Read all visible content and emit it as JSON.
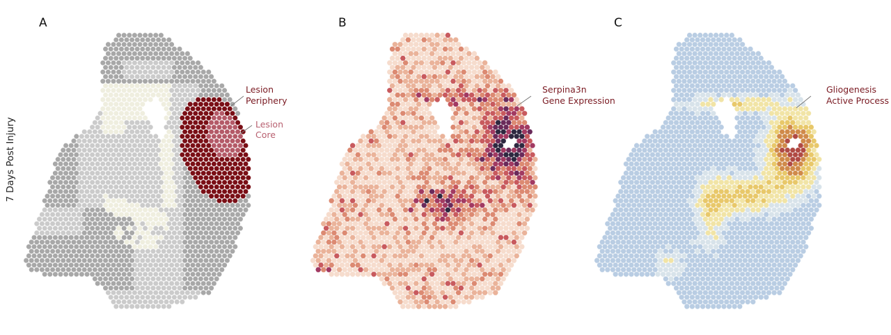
{
  "side_label": "7 Days Post Injury",
  "panels": [
    {
      "label": "A",
      "annotations": [
        {
          "lines": [
            "Lesion",
            "Periphery"
          ],
          "color": "#7a1a22"
        },
        {
          "lines": [
            "Lesion",
            "Core"
          ],
          "color": "#b86070"
        }
      ]
    },
    {
      "label": "B",
      "annotations": [
        {
          "lines": [
            "Serpina3n",
            "Gene Expression"
          ],
          "color": "#7a1a22"
        }
      ]
    },
    {
      "label": "C",
      "annotations": [
        {
          "lines": [
            "Gliogenesis",
            "Active Process"
          ],
          "color": "#7a1a22"
        }
      ]
    }
  ],
  "colors": {
    "region_dark_grey": "#a8a8a8",
    "region_light_grey": "#cbcbcb",
    "region_cream": "#efeedf",
    "lesion_periphery": "#7a0f16",
    "lesion_core": "#b45a68",
    "expression_scale": [
      "#f6dccd",
      "#eab39a",
      "#dc8a72",
      "#c85a5e",
      "#a23a62",
      "#6a2a5a",
      "#2e2840"
    ],
    "process_scale": [
      "#b9cde3",
      "#d8e3ea",
      "#f1e4a6",
      "#e8c86a",
      "#d08a4a",
      "#b04a44"
    ]
  }
}
